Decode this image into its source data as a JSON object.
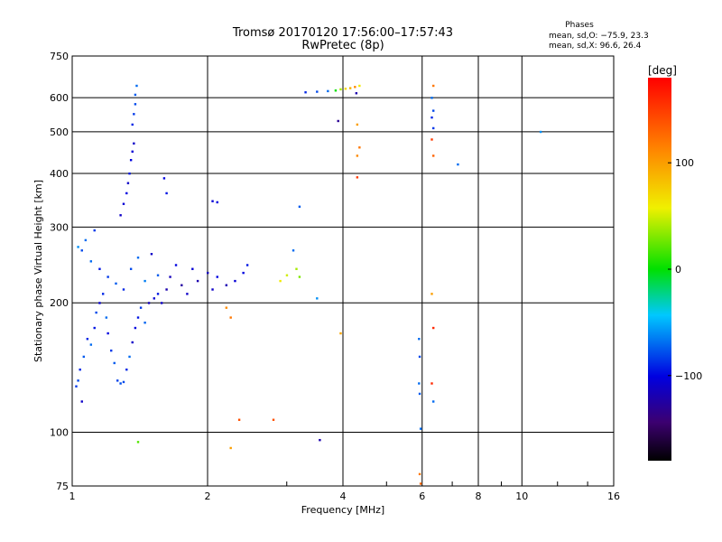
{
  "header": {
    "title_line1": "Tromsø 20170120 17:56:00–17:57:43",
    "title_line2": "RwPretec (8p)",
    "stats_title": "Phases",
    "stats_o": "mean, sd,O:  −75.9, 23.3",
    "stats_x": "mean, sd,X:   96.6, 26.4"
  },
  "chart_data": {
    "type": "scatter",
    "xlabel": "Frequency [MHz]",
    "ylabel": "Stationary phase Virtual Height [km]",
    "x_scale": "log",
    "y_scale": "log",
    "xlim": [
      1,
      16
    ],
    "ylim": [
      75,
      750
    ],
    "x_ticks": [
      1,
      2,
      4,
      6,
      8,
      10,
      16
    ],
    "x_tick_labels": [
      "1",
      "2",
      "4",
      "6",
      "8",
      "10",
      "16"
    ],
    "y_ticks": [
      75,
      100,
      200,
      300,
      400,
      500,
      600,
      750
    ],
    "y_tick_labels": [
      "75",
      "100",
      "200",
      "300",
      "400",
      "500",
      "600",
      "750"
    ],
    "grid": true,
    "colorbar": {
      "label": "[deg]",
      "range": [
        -180,
        180
      ],
      "ticks": [
        100,
        0,
        -100
      ],
      "tick_labels": [
        "100",
        "0",
        "−100"
      ],
      "colormap": "rainbow"
    },
    "points": [
      [
        1.02,
        128,
        -85
      ],
      [
        1.03,
        132,
        -80
      ],
      [
        1.04,
        140,
        -90
      ],
      [
        1.05,
        118,
        -110
      ],
      [
        1.06,
        150,
        -75
      ],
      [
        1.08,
        165,
        -90
      ],
      [
        1.1,
        160,
        -70
      ],
      [
        1.12,
        175,
        -95
      ],
      [
        1.13,
        190,
        -80
      ],
      [
        1.15,
        200,
        -105
      ],
      [
        1.17,
        210,
        -90
      ],
      [
        1.19,
        185,
        -70
      ],
      [
        1.2,
        170,
        -100
      ],
      [
        1.22,
        155,
        -85
      ],
      [
        1.24,
        145,
        -75
      ],
      [
        1.26,
        132,
        -82
      ],
      [
        1.28,
        130,
        -78
      ],
      [
        1.3,
        131,
        -80
      ],
      [
        1.32,
        140,
        -90
      ],
      [
        1.34,
        150,
        -70
      ],
      [
        1.36,
        162,
        -110
      ],
      [
        1.38,
        175,
        -100
      ],
      [
        1.4,
        185,
        -95
      ],
      [
        1.42,
        195,
        -85
      ],
      [
        1.45,
        180,
        -72
      ],
      [
        1.48,
        200,
        -115
      ],
      [
        1.52,
        205,
        -105
      ],
      [
        1.55,
        210,
        -95
      ],
      [
        1.58,
        200,
        -110
      ],
      [
        1.62,
        215,
        -120
      ],
      [
        1.65,
        230,
        -115
      ],
      [
        1.7,
        245,
        -100
      ],
      [
        1.75,
        220,
        -125
      ],
      [
        1.8,
        210,
        -110
      ],
      [
        1.85,
        240,
        -105
      ],
      [
        1.9,
        225,
        -120
      ],
      [
        2.0,
        235,
        -115
      ],
      [
        2.05,
        215,
        -110
      ],
      [
        2.1,
        230,
        -100
      ],
      [
        2.2,
        220,
        -118
      ],
      [
        2.3,
        225,
        -105
      ],
      [
        2.4,
        235,
        -100
      ],
      [
        2.45,
        245,
        -95
      ],
      [
        1.05,
        265,
        -80
      ],
      [
        1.1,
        250,
        -70
      ],
      [
        1.15,
        240,
        -95
      ],
      [
        1.2,
        230,
        -85
      ],
      [
        1.25,
        222,
        -75
      ],
      [
        1.3,
        215,
        -90
      ],
      [
        1.35,
        240,
        -80
      ],
      [
        1.4,
        255,
        -70
      ],
      [
        1.45,
        225,
        -65
      ],
      [
        1.5,
        260,
        -110
      ],
      [
        1.55,
        232,
        -75
      ],
      [
        1.03,
        270,
        -60
      ],
      [
        1.07,
        280,
        -70
      ],
      [
        1.12,
        295,
        -85
      ],
      [
        1.28,
        320,
        -110
      ],
      [
        1.3,
        340,
        -105
      ],
      [
        1.32,
        360,
        -100
      ],
      [
        1.33,
        380,
        -110
      ],
      [
        1.34,
        400,
        -95
      ],
      [
        1.35,
        430,
        -100
      ],
      [
        1.36,
        450,
        -105
      ],
      [
        1.37,
        470,
        -110
      ],
      [
        1.36,
        520,
        -90
      ],
      [
        1.37,
        550,
        -85
      ],
      [
        1.38,
        580,
        -80
      ],
      [
        1.38,
        610,
        -75
      ],
      [
        1.39,
        640,
        -70
      ],
      [
        1.6,
        390,
        -100
      ],
      [
        1.62,
        360,
        -95
      ],
      [
        2.05,
        345,
        -105
      ],
      [
        2.1,
        343,
        -100
      ],
      [
        3.2,
        335,
        -75
      ],
      [
        3.1,
        265,
        -70
      ],
      [
        2.9,
        225,
        60
      ],
      [
        3.0,
        232,
        50
      ],
      [
        3.15,
        240,
        40
      ],
      [
        3.2,
        230,
        30
      ],
      [
        2.2,
        195,
        110
      ],
      [
        2.25,
        185,
        120
      ],
      [
        2.35,
        107,
        140
      ],
      [
        2.8,
        107,
        140
      ],
      [
        2.25,
        92,
        100
      ],
      [
        1.4,
        95,
        20
      ],
      [
        3.55,
        96,
        -120
      ],
      [
        3.5,
        205,
        -60
      ],
      [
        3.3,
        618,
        -90
      ],
      [
        3.5,
        620,
        -80
      ],
      [
        3.7,
        622,
        -70
      ],
      [
        3.85,
        624,
        0
      ],
      [
        3.95,
        628,
        40
      ],
      [
        4.05,
        630,
        70
      ],
      [
        4.15,
        632,
        90
      ],
      [
        4.25,
        636,
        110
      ],
      [
        4.35,
        640,
        60
      ],
      [
        4.28,
        615,
        -120
      ],
      [
        4.3,
        520,
        100
      ],
      [
        4.35,
        460,
        120
      ],
      [
        4.3,
        440,
        110
      ],
      [
        4.3,
        392,
        150
      ],
      [
        3.9,
        530,
        -130
      ],
      [
        3.95,
        170,
        95
      ],
      [
        5.9,
        165,
        -70
      ],
      [
        5.92,
        150,
        -80
      ],
      [
        5.9,
        130,
        -70
      ],
      [
        5.92,
        123,
        -75
      ],
      [
        5.95,
        102,
        -70
      ],
      [
        5.92,
        80,
        120
      ],
      [
        5.95,
        76,
        130
      ],
      [
        6.35,
        640,
        120
      ],
      [
        6.3,
        600,
        -70
      ],
      [
        6.35,
        560,
        -80
      ],
      [
        6.3,
        540,
        -90
      ],
      [
        6.35,
        510,
        -85
      ],
      [
        6.3,
        480,
        150
      ],
      [
        6.35,
        440,
        130
      ],
      [
        6.3,
        210,
        100
      ],
      [
        6.35,
        175,
        160
      ],
      [
        6.3,
        130,
        160
      ],
      [
        6.35,
        118,
        -70
      ],
      [
        7.2,
        420,
        -70
      ],
      [
        11.0,
        500,
        -60
      ]
    ]
  }
}
